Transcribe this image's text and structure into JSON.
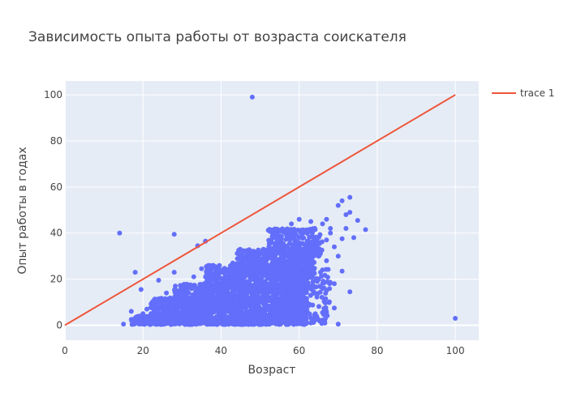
{
  "chart_data": {
    "type": "scatter",
    "title": "Зависимость опыта работы от возраста соискателя",
    "xlabel": "Возраст",
    "ylabel": "Опыт работы в годах",
    "xlim": [
      0,
      106
    ],
    "ylim": [
      -6.5,
      106
    ],
    "xticks": [
      0,
      20,
      40,
      60,
      80,
      100
    ],
    "yticks": [
      0,
      20,
      40,
      60,
      80,
      100
    ],
    "grid": true,
    "plot_background": "#e5ecf6",
    "legend_position": "top-right",
    "series": [
      {
        "type": "scatter",
        "color": "#636efa",
        "points": [
          [
            14,
            40
          ],
          [
            28,
            39.5
          ],
          [
            34,
            34.5
          ],
          [
            36,
            36.5
          ],
          [
            48,
            99
          ],
          [
            100,
            3
          ],
          [
            70,
            0.5
          ],
          [
            18,
            23
          ],
          [
            19.5,
            15.5
          ],
          [
            24,
            19.5
          ],
          [
            28,
            23
          ],
          [
            17,
            6
          ],
          [
            17,
            2.5
          ],
          [
            15,
            0.5
          ],
          [
            71,
            23.5
          ],
          [
            73,
            14.5
          ],
          [
            68,
            18.5
          ],
          [
            69,
            18
          ],
          [
            72,
            42
          ],
          [
            74,
            38
          ],
          [
            75,
            45.5
          ],
          [
            77,
            41.5
          ],
          [
            72,
            48
          ],
          [
            73,
            49
          ],
          [
            73,
            55.5
          ],
          [
            71,
            54
          ],
          [
            70,
            52
          ],
          [
            71,
            37.5
          ],
          [
            69,
            34
          ],
          [
            70,
            30
          ],
          [
            66,
            5.5
          ],
          [
            69,
            7.5
          ],
          [
            64,
            4.5
          ],
          [
            62,
            6.5
          ],
          [
            60,
            9.5
          ],
          [
            58,
            2
          ],
          [
            55,
            1
          ],
          [
            55,
            3
          ],
          [
            61,
            13
          ],
          [
            66,
            24
          ],
          [
            67,
            28
          ],
          [
            65,
            20
          ],
          [
            63,
            16
          ],
          [
            62,
            26
          ],
          [
            65,
            30
          ],
          [
            66,
            44
          ],
          [
            67,
            46
          ],
          [
            63,
            45
          ],
          [
            64,
            42
          ],
          [
            61,
            40
          ],
          [
            68,
            40
          ],
          [
            68,
            42
          ],
          [
            67,
            37
          ],
          [
            60,
            46
          ],
          [
            58,
            44
          ],
          [
            62,
            10
          ],
          [
            56,
            14
          ],
          [
            57,
            20
          ],
          [
            52,
            25
          ],
          [
            47,
            27
          ],
          [
            43,
            27
          ],
          [
            38,
            26
          ],
          [
            35,
            24.5
          ],
          [
            33,
            21
          ],
          [
            30,
            17
          ],
          [
            26,
            14
          ],
          [
            23,
            10
          ],
          [
            21,
            7
          ],
          [
            20,
            5
          ],
          [
            22,
            3
          ],
          [
            44,
            2
          ],
          [
            45,
            1
          ],
          [
            50,
            4
          ],
          [
            53,
            8
          ],
          [
            59,
            35
          ],
          [
            60,
            38
          ],
          [
            57,
            40
          ],
          [
            55,
            36
          ],
          [
            53,
            33
          ],
          [
            50,
            31
          ]
        ],
        "clusters": [
          {
            "x_range": [
              17,
              62
            ],
            "y_range": [
              0.3,
              4
            ],
            "n": 900
          },
          {
            "x_range": [
              22,
              62
            ],
            "y_range": [
              4,
              12
            ],
            "n": 700
          },
          {
            "x_range": [
              28,
              62
            ],
            "y_range": [
              10,
              18
            ],
            "n": 550
          },
          {
            "x_range": [
              36,
              62
            ],
            "y_range": [
              16,
              26
            ],
            "n": 450
          },
          {
            "x_range": [
              44,
              64
            ],
            "y_range": [
              22,
              33
            ],
            "n": 350
          },
          {
            "x_range": [
              52,
              66
            ],
            "y_range": [
              30,
              42
            ],
            "n": 220
          },
          {
            "x_range": [
              55,
              68
            ],
            "y_range": [
              0.5,
              25
            ],
            "n": 200
          }
        ]
      },
      {
        "name": "trace 1",
        "type": "line",
        "color": "#ef553b",
        "x": [
          0,
          100
        ],
        "y": [
          0,
          100
        ]
      }
    ]
  }
}
